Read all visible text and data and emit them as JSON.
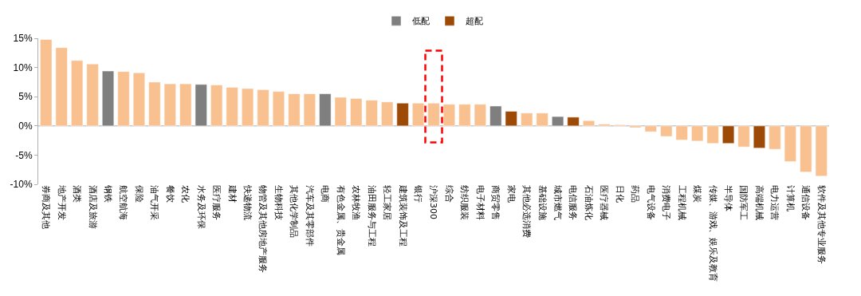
{
  "chart_data": {
    "type": "bar",
    "categories": [
      "券商及其他",
      "地产开发",
      "酒类",
      "酒店及旅游",
      "钢铁",
      "航空航海",
      "保险",
      "油气开采",
      "餐饮",
      "农化",
      "水务及环保",
      "医疗服务",
      "建材",
      "快递物流",
      "物管及其他房地产服务",
      "生物科技",
      "其他化学制品",
      "汽车及其零部件",
      "电商",
      "有色金属、贵金属",
      "农林牧渔",
      "油田服务与工程",
      "轻工家居",
      "建筑装饰及工程",
      "银行",
      "沪深300",
      "综合",
      "纺织服装",
      "电子材料",
      "商贸零售",
      "家电",
      "其他必选消费",
      "基础设施",
      "城市燃气",
      "电信服务",
      "石油炼化",
      "医疗器械",
      "日化",
      "药品",
      "电气设备",
      "消费电子",
      "工程机械",
      "煤炭",
      "传媒、游戏、娱乐及教育",
      "半导体",
      "国防军工",
      "高端机械",
      "电力运营",
      "计算机",
      "通信设备",
      "软件及其他专业服务"
    ],
    "series": [
      {
        "color": "#f9c190",
        "values": [
          14.8,
          13.4,
          11.2,
          10.6,
          null,
          9.3,
          9.1,
          7.5,
          7.2,
          7.2,
          null,
          7.0,
          6.6,
          6.4,
          6.2,
          5.9,
          5.5,
          5.5,
          null,
          4.9,
          4.7,
          4.4,
          4.1,
          null,
          3.9,
          3.9,
          3.7,
          3.7,
          3.7,
          null,
          null,
          2.2,
          2.2,
          null,
          null,
          0.9,
          0.3,
          0.2,
          -0.3,
          -1.0,
          -1.8,
          -2.4,
          -2.6,
          -3.0,
          null,
          -3.6,
          null,
          -4.0,
          -6.1,
          -7.9,
          -8.6
        ]
      },
      {
        "name": "低配",
        "color": "#7f7f7f",
        "values": [
          null,
          null,
          null,
          null,
          9.4,
          null,
          null,
          null,
          null,
          null,
          7.1,
          null,
          null,
          null,
          null,
          null,
          null,
          null,
          5.5,
          null,
          null,
          null,
          null,
          null,
          null,
          null,
          null,
          null,
          null,
          3.4,
          null,
          null,
          null,
          1.6,
          null,
          null,
          null,
          null,
          null,
          null,
          null,
          null,
          null,
          null,
          null,
          null,
          null,
          null,
          null,
          null,
          null
        ]
      },
      {
        "name": "超配",
        "color": "#9c4a06",
        "values": [
          null,
          null,
          null,
          null,
          null,
          null,
          null,
          null,
          null,
          null,
          null,
          null,
          null,
          null,
          null,
          null,
          null,
          null,
          null,
          null,
          null,
          null,
          null,
          3.9,
          null,
          null,
          null,
          null,
          null,
          null,
          2.5,
          null,
          null,
          null,
          1.5,
          null,
          null,
          null,
          null,
          null,
          null,
          null,
          null,
          null,
          -3.0,
          null,
          -3.8,
          null,
          null,
          null,
          null
        ]
      }
    ],
    "ylim": [
      -10,
      15
    ],
    "yticks": [
      {
        "value": -10,
        "label": "-10%"
      },
      {
        "value": -5,
        "label": "-5%"
      },
      {
        "value": 0,
        "label": "0%"
      },
      {
        "value": 5,
        "label": "5%"
      },
      {
        "value": 10,
        "label": "10%"
      },
      {
        "value": 15,
        "label": "15%"
      }
    ],
    "ref_lines": [
      {
        "axis": "y",
        "value": 0,
        "color": "#b0b0b0"
      }
    ],
    "grid": false,
    "legend": "top"
  }
}
